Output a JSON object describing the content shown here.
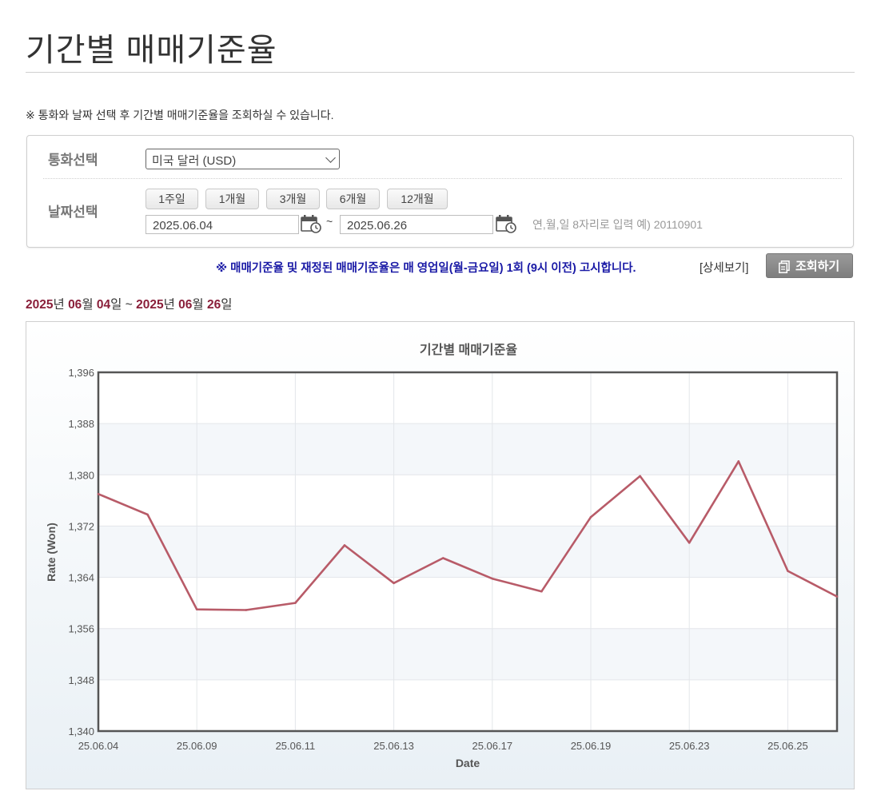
{
  "page": {
    "title": "기간별 매매기준율",
    "notice": "※ 통화와 날짜 선택 후 기간별 매매기준율을 조회하실 수 있습니다."
  },
  "form": {
    "currency_label": "통화선택",
    "currency_value": "미국 달러 (USD)",
    "date_label": "날짜선택",
    "period_buttons": [
      "1주일",
      "1개월",
      "3개월",
      "6개월",
      "12개월"
    ],
    "start_date": "2025.06.04",
    "separator": "~",
    "end_date": "2025.06.26",
    "date_hint": "연,월,일 8자리로 입력 예) 20110901"
  },
  "notice2": "※ 매매기준율 및 재정된 매매기준율은 매 영업일(월-금요일) 1회 (9시 이전) 고시합니다.",
  "detail_link": "[상세보기]",
  "search_button": "조회하기",
  "range": {
    "start_year": "2025",
    "start_month": "06",
    "start_day": "04",
    "end_year": "2025",
    "end_month": "06",
    "end_day": "26",
    "year_suffix": "년 ",
    "month_suffix": "월 ",
    "day_suffix": "일",
    "tilde": " ~ "
  },
  "colors": {
    "line": "#b85b68",
    "range_highlight": "#8a1f3a",
    "notice2": "#1a1aa6"
  },
  "chart_data": {
    "type": "line",
    "title": "기간별 매매기준율",
    "xlabel": "Date",
    "ylabel": "Rate (Won)",
    "ylim": [
      1340,
      1396
    ],
    "yticks": [
      "1,340",
      "1,348",
      "1,356",
      "1,364",
      "1,372",
      "1,380",
      "1,388",
      "1,396"
    ],
    "x": [
      "25.06.04",
      "25.06.05",
      "25.06.09",
      "25.06.10",
      "25.06.11",
      "25.06.12",
      "25.06.13",
      "25.06.16",
      "25.06.17",
      "25.06.18",
      "25.06.19",
      "25.06.20",
      "25.06.23",
      "25.06.24",
      "25.06.25",
      "25.06.26"
    ],
    "xtick_labels": [
      "25.06.04",
      "25.06.09",
      "25.06.11",
      "25.06.13",
      "25.06.17",
      "25.06.19",
      "25.06.23",
      "25.06.25"
    ],
    "series": [
      {
        "values": [
          1377.0,
          1373.8,
          1359.0,
          1358.9,
          1360.0,
          1369.0,
          1363.1,
          1367.0,
          1363.8,
          1361.8,
          1373.4,
          1379.8,
          1369.4,
          1382.1,
          1365.0,
          1361.0
        ]
      }
    ],
    "grid": true,
    "legend": "none"
  }
}
